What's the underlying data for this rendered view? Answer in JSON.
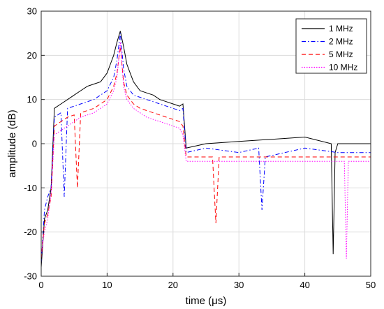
{
  "chart_data": {
    "type": "line",
    "title": "",
    "xlabel": "time (μs)",
    "ylabel": "amplitude (dB)",
    "xlim": [
      0,
      50
    ],
    "ylim": [
      -30,
      30
    ],
    "xticks": [
      "0",
      "10",
      "20",
      "30",
      "40",
      "50"
    ],
    "yticks": [
      "-30",
      "-20",
      "-10",
      "0",
      "10",
      "20",
      "30"
    ],
    "grid": true,
    "legend_position": "top-right",
    "series": [
      {
        "name": "1 MHz",
        "color": "#000000",
        "style": "solid",
        "x": [
          0,
          0.5,
          1,
          1.5,
          2,
          3,
          4,
          5,
          6,
          7,
          8,
          9,
          10,
          10.5,
          11,
          11.5,
          12,
          12.5,
          13,
          13.5,
          14,
          15,
          16,
          17,
          18,
          19,
          20,
          21,
          21.5,
          22,
          25,
          30,
          35,
          40,
          44,
          44.3,
          44.6,
          45,
          50
        ],
        "y": [
          -28,
          -17,
          -15,
          -10,
          8,
          9,
          10,
          11,
          12,
          13,
          13.5,
          14,
          16,
          18,
          20,
          23,
          25.5,
          22,
          18,
          16,
          14,
          12,
          11.5,
          11,
          10,
          9.5,
          9,
          8.5,
          9,
          -1,
          0,
          0.5,
          1,
          1.5,
          0,
          -25,
          -2,
          0,
          0
        ]
      },
      {
        "name": "2 MHz",
        "color": "#0000ff",
        "style": "dashdot",
        "x": [
          0,
          0.5,
          1,
          1.5,
          2,
          3,
          3.5,
          4,
          5,
          6,
          7,
          8,
          9,
          10,
          11,
          11.5,
          12,
          12.5,
          13,
          14,
          15,
          16,
          17,
          18,
          19,
          20,
          21,
          21.5,
          22,
          25,
          30,
          33,
          33.5,
          34,
          40,
          45,
          50
        ],
        "y": [
          -27,
          -15,
          -12,
          -10,
          6,
          7,
          -12,
          8,
          8.5,
          9,
          9.5,
          10,
          11,
          12,
          15,
          19,
          25,
          17,
          13,
          11,
          10.5,
          10,
          9.5,
          9,
          8.5,
          8,
          7.5,
          8,
          -2,
          -1,
          -2,
          -1,
          -15,
          -3,
          -1,
          -2,
          -2
        ]
      },
      {
        "name": "5 MHz",
        "color": "#ff0000",
        "style": "dashed",
        "x": [
          0,
          0.5,
          1,
          1.5,
          2,
          3,
          4,
          5,
          5.5,
          6,
          7,
          8,
          9,
          10,
          11,
          11.5,
          12,
          12.5,
          13,
          14,
          15,
          16,
          17,
          18,
          19,
          20,
          21,
          21.5,
          22,
          25,
          26,
          26.5,
          27,
          30,
          35,
          40,
          45,
          50
        ],
        "y": [
          -26,
          -18,
          -16,
          -12,
          4,
          5,
          6,
          6.5,
          -10,
          7,
          7.5,
          8,
          9,
          10,
          13,
          16,
          22,
          14,
          11,
          9,
          8,
          7.5,
          7,
          6.5,
          6,
          5.5,
          5,
          4,
          -3,
          -3,
          -3,
          -18,
          -3,
          -3,
          -3,
          -3,
          -3,
          -3
        ]
      },
      {
        "name": "10 MHz",
        "color": "#ff00ff",
        "style": "dotted",
        "x": [
          0,
          0.5,
          1,
          1.5,
          2,
          3,
          4,
          5,
          6,
          7,
          8,
          9,
          10,
          11,
          11.5,
          12,
          12.5,
          13,
          14,
          15,
          16,
          17,
          18,
          19,
          20,
          21,
          21.5,
          22,
          25,
          30,
          35,
          40,
          45,
          46,
          46.3,
          46.6,
          47,
          50
        ],
        "y": [
          -25,
          -20,
          -17,
          -11,
          2,
          3,
          4,
          5,
          6,
          6.5,
          7,
          8,
          9,
          12,
          15,
          23,
          13,
          10,
          8,
          7,
          6,
          5.5,
          5,
          4.5,
          4,
          3.5,
          2,
          -4,
          -4,
          -4,
          -4,
          -4,
          -4,
          -4,
          -26,
          -4,
          -4,
          -4
        ]
      }
    ]
  }
}
